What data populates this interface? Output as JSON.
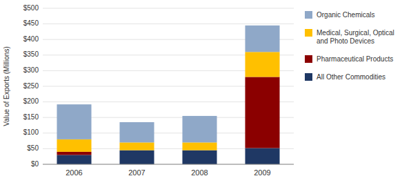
{
  "chart_data": {
    "type": "bar",
    "stacked": true,
    "categories": [
      "2006",
      "2007",
      "2008",
      "2009"
    ],
    "series": [
      {
        "name": "All Other Commodities",
        "color": "#1F3864",
        "values": [
          30,
          45,
          45,
          52
        ]
      },
      {
        "name": "Pharmaceutical Products",
        "color": "#8B0000",
        "values": [
          10,
          0,
          0,
          228
        ]
      },
      {
        "name": "Medical, Surgical, Optical\nand Photo Devices",
        "color": "#FFC000",
        "values": [
          40,
          25,
          25,
          80
        ]
      },
      {
        "name": "Organic Chemicals",
        "color": "#8FA8C8",
        "values": [
          112,
          65,
          85,
          85
        ]
      }
    ],
    "ylabel": "Value of Exports (Millions)",
    "ylim": [
      0,
      500
    ],
    "yticks": [
      {
        "value": 0,
        "label": "$0"
      },
      {
        "value": 50,
        "label": "$50"
      },
      {
        "value": 100,
        "label": "$100"
      },
      {
        "value": 150,
        "label": "$150"
      },
      {
        "value": 200,
        "label": "$200"
      },
      {
        "value": 250,
        "label": "$250"
      },
      {
        "value": 300,
        "label": "$300"
      },
      {
        "value": 350,
        "label": "$350"
      },
      {
        "value": 400,
        "label": "$400"
      },
      {
        "value": 450,
        "label": "$450"
      },
      {
        "value": 500,
        "label": "$500"
      }
    ],
    "grid": true,
    "legend": "right"
  }
}
